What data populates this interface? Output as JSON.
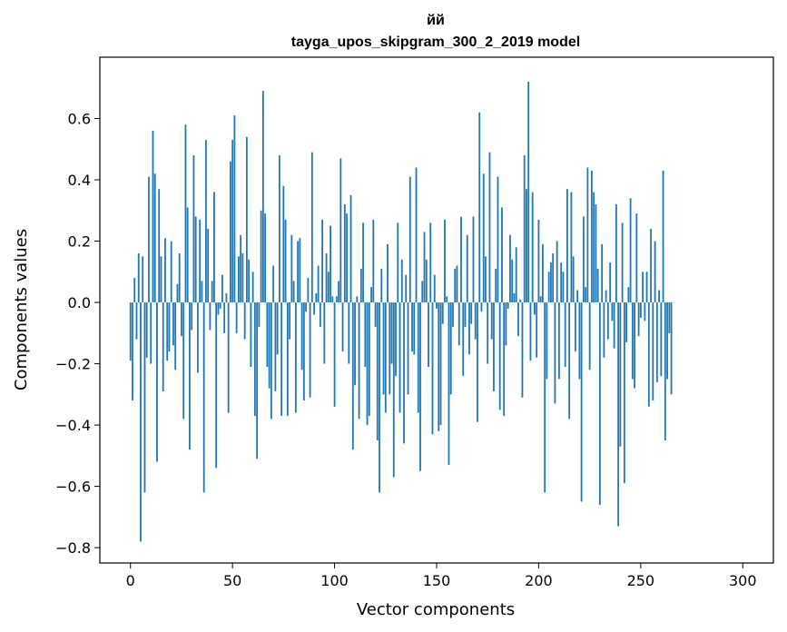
{
  "chart_data": {
    "type": "bar",
    "title_line1": "йй",
    "title_line2": "tayga_upos_skipgram_300_2_2019 model",
    "xlabel": "Vector components",
    "ylabel": "Components values",
    "xlim": [
      -15,
      315
    ],
    "ylim": [
      -0.85,
      0.8
    ],
    "xticks": [
      0,
      50,
      100,
      150,
      200,
      250,
      300
    ],
    "yticks": [
      -0.8,
      -0.6,
      -0.4,
      -0.2,
      0.0,
      0.2,
      0.4,
      0.6
    ],
    "ytick_labels": [
      "−0.8",
      "−0.6",
      "−0.4",
      "−0.2",
      "0.0",
      "0.2",
      "0.4",
      "0.6"
    ],
    "bar_color": "#1f77b4",
    "values": [
      -0.19,
      -0.32,
      0.08,
      -0.12,
      0.16,
      -0.78,
      0.15,
      -0.62,
      -0.18,
      0.41,
      -0.2,
      0.56,
      0.42,
      -0.52,
      0.37,
      0.15,
      -0.29,
      0.21,
      -0.19,
      -0.16,
      0.2,
      -0.14,
      -0.22,
      0.06,
      0.16,
      -0.11,
      -0.38,
      0.58,
      0.31,
      -0.48,
      -0.09,
      0.48,
      0.28,
      -0.23,
      0.27,
      0.07,
      -0.62,
      0.53,
      0.24,
      -0.09,
      0.07,
      0.36,
      -0.54,
      -0.04,
      -0.02,
      0.09,
      -0.1,
      0.03,
      -0.36,
      0.46,
      0.53,
      0.61,
      -0.1,
      0.15,
      0.22,
      0.16,
      -0.12,
      0.54,
      0.14,
      -0.21,
      0.1,
      -0.37,
      -0.51,
      -0.08,
      0.3,
      0.69,
      0.29,
      -0.21,
      -0.28,
      -0.38,
      0.12,
      -0.29,
      -0.17,
      0.48,
      -0.37,
      0.38,
      0.27,
      -0.37,
      -0.12,
      0.22,
      0.07,
      -0.36,
      0.2,
      0.21,
      -0.22,
      -0.32,
      -0.03,
      0.08,
      -0.31,
      0.49,
      -0.04,
      0.03,
      0.12,
      -0.08,
      0.27,
      -0.2,
      0.16,
      0.1,
      0.25,
      0.02,
      -0.34,
      0.02,
      0.07,
      0.47,
      -0.16,
      0.32,
      0.29,
      -0.2,
      0.35,
      -0.48,
      -0.27,
      0.02,
      -0.38,
      0.11,
      0.26,
      -0.21,
      -0.4,
      -0.37,
      0.05,
      0.27,
      -0.08,
      -0.45,
      -0.62,
      0.11,
      -0.3,
      -0.36,
      0.19,
      -0.3,
      -0.2,
      -0.57,
      -0.24,
      0.26,
      -0.36,
      0.14,
      -0.46,
      0.09,
      -0.3,
      0.41,
      -0.16,
      -0.17,
      0.44,
      -0.36,
      -0.55,
      0.07,
      0.23,
      0.14,
      -0.21,
      0.26,
      -0.43,
      0.09,
      -0.02,
      -0.42,
      -0.4,
      -0.07,
      0.27,
      0.02,
      -0.53,
      -0.3,
      -0.08,
      0.11,
      0.12,
      -0.14,
      0.28,
      -0.24,
      -0.08,
      0.22,
      -0.17,
      -0.07,
      0.28,
      -0.12,
      -0.39,
      0.62,
      -0.03,
      0.42,
      0.15,
      -0.2,
      0.49,
      -0.12,
      -0.29,
      0.11,
      0.41,
      -0.35,
      0.31,
      -0.37,
      -0.14,
      -0.02,
      0.22,
      0.14,
      0.03,
      0.18,
      -0.11,
      0.01,
      -0.31,
      0.48,
      0.37,
      0.72,
      -0.19,
      0.36,
      -0.04,
      -0.18,
      0.27,
      0.02,
      0.19,
      -0.62,
      -0.25,
      0.1,
      0.13,
      0.16,
      -0.33,
      0.2,
      -0.25,
      0.13,
      0.1,
      -0.21,
      0.37,
      -0.38,
      0.36,
      0.15,
      -0.16,
      0.04,
      -0.25,
      -0.65,
      0.28,
      0.05,
      0.44,
      -0.22,
      0.43,
      0.36,
      0.32,
      0.11,
      -0.66,
      0.19,
      -0.18,
      0.04,
      -0.12,
      0.13,
      -0.06,
      -0.15,
      0.32,
      -0.73,
      -0.47,
      0.26,
      -0.59,
      -0.13,
      0.05,
      0.34,
      -0.25,
      -0.28,
      0.29,
      -0.11,
      -0.05,
      0.1,
      -0.06,
      0.1,
      -0.34,
      0.24,
      -0.32,
      0.2,
      -0.26,
      0.04,
      -0.24,
      0.43,
      -0.45,
      -0.25,
      -0.1,
      -0.3
    ]
  }
}
